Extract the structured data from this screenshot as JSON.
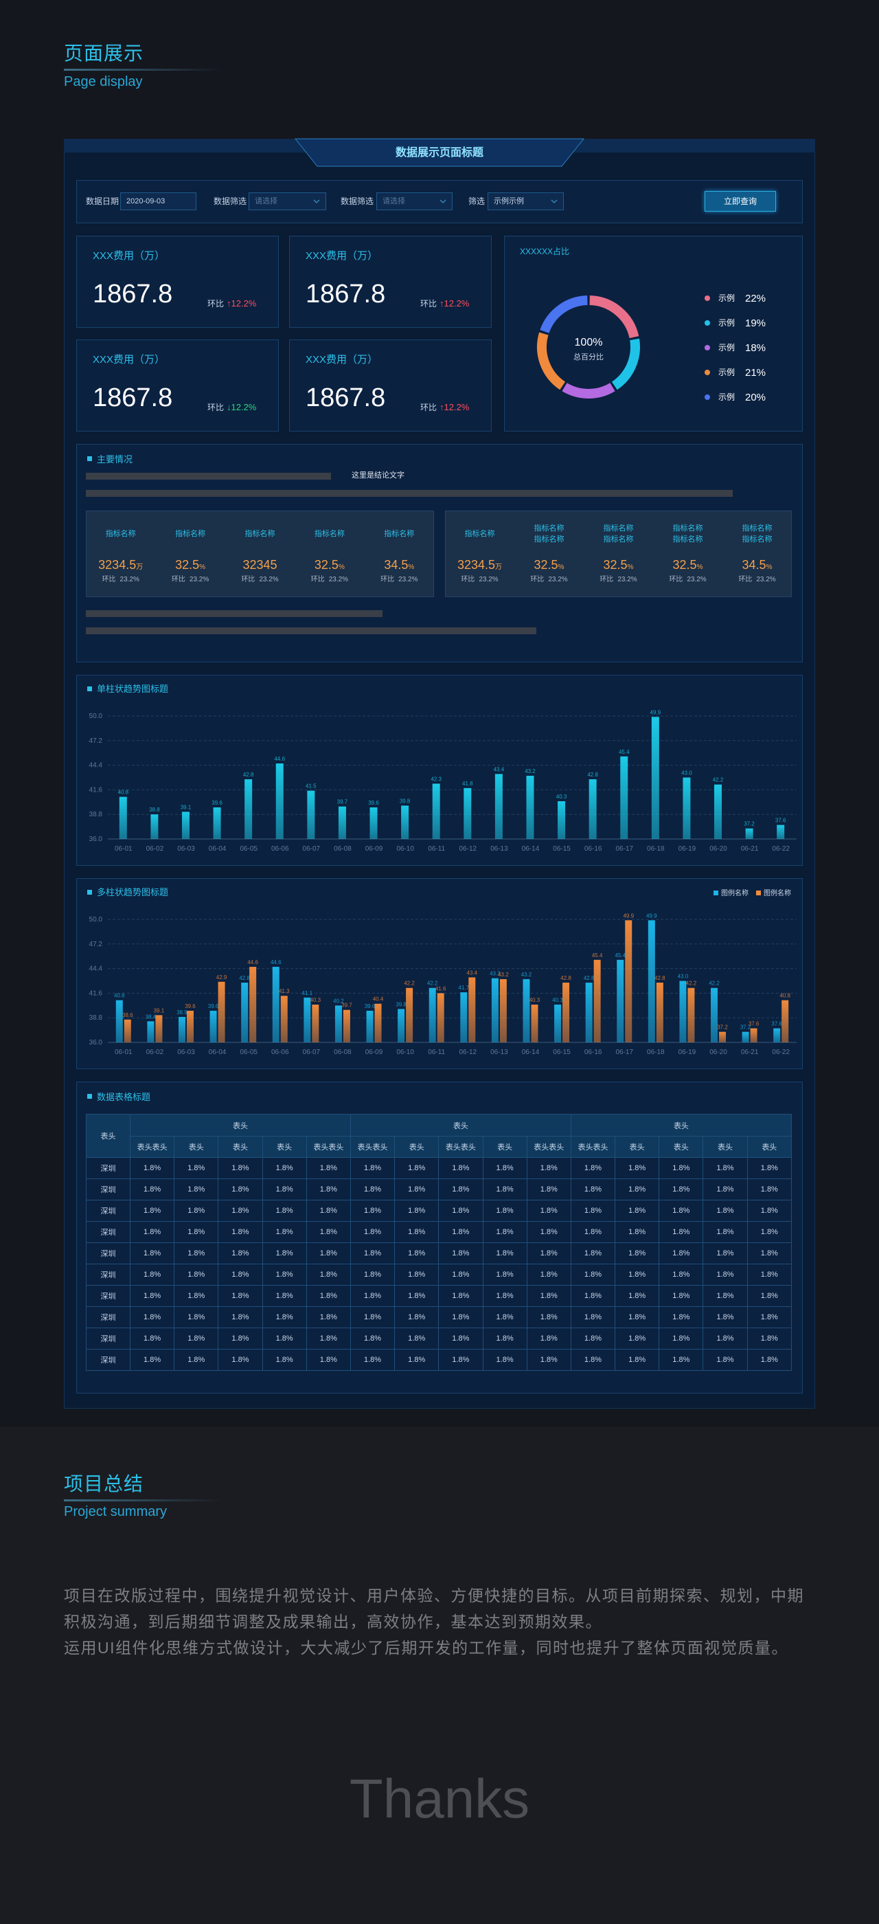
{
  "header": {
    "title": "页面展示",
    "subtitle": "Page display"
  },
  "dashboard": {
    "title": "数据展示页面标题",
    "filters": [
      {
        "label": "数据日期",
        "value": "2020-09-03"
      },
      {
        "label": "数据筛选",
        "value": "请选择"
      },
      {
        "label": "数据筛选",
        "value": "请选择"
      },
      {
        "label": "筛选",
        "value": "示例示例"
      }
    ],
    "button": "立即查询",
    "kpis": [
      {
        "label": "XXX费用（万）",
        "value": "1867.8",
        "change_label": "环比",
        "change": "↑12.2%",
        "change_color": "#ff4d5a"
      },
      {
        "label": "XXX费用（万）",
        "value": "1867.8",
        "change_label": "环比",
        "change": "↑12.2%",
        "change_color": "#ff4d5a"
      },
      {
        "label": "XXX费用（万）",
        "value": "1867.8",
        "change_label": "环比",
        "change": "↓12.2%",
        "change_color": "#2bd67b"
      },
      {
        "label": "XXX费用（万）",
        "value": "1867.8",
        "change_label": "环比",
        "change": "↑12.2%",
        "change_color": "#ff4d5a"
      }
    ],
    "main": {
      "title": "主要情况",
      "conclusion": "这里是结论文字",
      "left_stats": [
        {
          "label": [
            "指标名称"
          ],
          "value": "3234.5",
          "unit": "万",
          "change_label": "环比",
          "change": "23.2%"
        },
        {
          "label": [
            "指标名称"
          ],
          "value": "32.5",
          "unit": "%",
          "change_label": "环比",
          "change": "23.2%"
        },
        {
          "label": [
            "指标名称"
          ],
          "value": "32345",
          "change_label": "环比",
          "change": "23.2%"
        },
        {
          "label": [
            "指标名称"
          ],
          "value": "32.5",
          "unit": "%",
          "change_label": "环比",
          "change": "23.2%"
        },
        {
          "label": [
            "指标名称"
          ],
          "value": "34.5",
          "unit": "%",
          "change_label": "环比",
          "change": "23.2%"
        }
      ],
      "right_stats": [
        {
          "label": [
            "指标名称"
          ],
          "value": "3234.5",
          "unit": "万",
          "change_label": "环比",
          "change": "23.2%"
        },
        {
          "label": [
            "指标名称",
            "指标名称"
          ],
          "value": "32.5",
          "unit": "%",
          "change_label": "环比",
          "change": "23.2%"
        },
        {
          "label": [
            "指标名称",
            "指标名称"
          ],
          "value": "32.5",
          "unit": "%",
          "change_label": "环比",
          "change": "23.2%"
        },
        {
          "label": [
            "指标名称",
            "指标名称"
          ],
          "value": "32.5",
          "unit": "%",
          "change_label": "环比",
          "change": "23.2%"
        },
        {
          "label": [
            "指标名称",
            "指标名称"
          ],
          "value": "34.5",
          "unit": "%",
          "change_label": "环比",
          "change": "23.2%"
        }
      ]
    },
    "table": {
      "title": "数据表格标题",
      "corner": "表头",
      "groups": [
        "表头",
        "表头",
        "表头"
      ],
      "subheaders": [
        "表头表头",
        "表头",
        "表头",
        "表头",
        "表头表头",
        "表头表头",
        "表头",
        "表头表头",
        "表头",
        "表头表头",
        "表头表头",
        "表头",
        "表头",
        "表头",
        "表头"
      ],
      "rows": [
        [
          "深圳",
          "1.8%",
          "1.8%",
          "1.8%",
          "1.8%",
          "1.8%",
          "1.8%",
          "1.8%",
          "1.8%",
          "1.8%",
          "1.8%",
          "1.8%",
          "1.8%",
          "1.8%",
          "1.8%",
          "1.8%"
        ],
        [
          "深圳",
          "1.8%",
          "1.8%",
          "1.8%",
          "1.8%",
          "1.8%",
          "1.8%",
          "1.8%",
          "1.8%",
          "1.8%",
          "1.8%",
          "1.8%",
          "1.8%",
          "1.8%",
          "1.8%",
          "1.8%"
        ],
        [
          "深圳",
          "1.8%",
          "1.8%",
          "1.8%",
          "1.8%",
          "1.8%",
          "1.8%",
          "1.8%",
          "1.8%",
          "1.8%",
          "1.8%",
          "1.8%",
          "1.8%",
          "1.8%",
          "1.8%",
          "1.8%"
        ],
        [
          "深圳",
          "1.8%",
          "1.8%",
          "1.8%",
          "1.8%",
          "1.8%",
          "1.8%",
          "1.8%",
          "1.8%",
          "1.8%",
          "1.8%",
          "1.8%",
          "1.8%",
          "1.8%",
          "1.8%",
          "1.8%"
        ],
        [
          "深圳",
          "1.8%",
          "1.8%",
          "1.8%",
          "1.8%",
          "1.8%",
          "1.8%",
          "1.8%",
          "1.8%",
          "1.8%",
          "1.8%",
          "1.8%",
          "1.8%",
          "1.8%",
          "1.8%",
          "1.8%"
        ],
        [
          "深圳",
          "1.8%",
          "1.8%",
          "1.8%",
          "1.8%",
          "1.8%",
          "1.8%",
          "1.8%",
          "1.8%",
          "1.8%",
          "1.8%",
          "1.8%",
          "1.8%",
          "1.8%",
          "1.8%",
          "1.8%"
        ],
        [
          "深圳",
          "1.8%",
          "1.8%",
          "1.8%",
          "1.8%",
          "1.8%",
          "1.8%",
          "1.8%",
          "1.8%",
          "1.8%",
          "1.8%",
          "1.8%",
          "1.8%",
          "1.8%",
          "1.8%",
          "1.8%"
        ],
        [
          "深圳",
          "1.8%",
          "1.8%",
          "1.8%",
          "1.8%",
          "1.8%",
          "1.8%",
          "1.8%",
          "1.8%",
          "1.8%",
          "1.8%",
          "1.8%",
          "1.8%",
          "1.8%",
          "1.8%",
          "1.8%"
        ],
        [
          "深圳",
          "1.8%",
          "1.8%",
          "1.8%",
          "1.8%",
          "1.8%",
          "1.8%",
          "1.8%",
          "1.8%",
          "1.8%",
          "1.8%",
          "1.8%",
          "1.8%",
          "1.8%",
          "1.8%",
          "1.8%"
        ],
        [
          "深圳",
          "1.8%",
          "1.8%",
          "1.8%",
          "1.8%",
          "1.8%",
          "1.8%",
          "1.8%",
          "1.8%",
          "1.8%",
          "1.8%",
          "1.8%",
          "1.8%",
          "1.8%",
          "1.8%",
          "1.8%"
        ]
      ]
    }
  },
  "chart_data": [
    {
      "type": "donut",
      "title": "XXXXXX占比",
      "center_value": "100%",
      "center_label": "总百分比",
      "categories": [
        "示例",
        "示例",
        "示例",
        "示例",
        "示例"
      ],
      "values": [
        22,
        19,
        18,
        21,
        20
      ],
      "value_labels": [
        "22%",
        "19%",
        "18%",
        "21%",
        "20%"
      ],
      "colors": [
        "#e8708a",
        "#1fc3e8",
        "#b46ae0",
        "#f08a3c",
        "#4a74f0"
      ]
    },
    {
      "type": "bar",
      "title": "单柱状趋势图标题",
      "categories": [
        "06-01",
        "06-02",
        "06-03",
        "06-04",
        "06-05",
        "06-06",
        "06-07",
        "06-08",
        "06-09",
        "06-10",
        "06-11",
        "06-12",
        "06-13",
        "06-14",
        "06-15",
        "06-16",
        "06-17",
        "06-18",
        "06-19",
        "06-20",
        "06-21",
        "06-22"
      ],
      "values": [
        40.8,
        38.8,
        39.1,
        39.6,
        42.8,
        44.6,
        41.5,
        39.7,
        39.6,
        39.8,
        42.3,
        41.8,
        43.4,
        43.2,
        40.3,
        42.8,
        45.4,
        49.9,
        43.0,
        42.2,
        37.2,
        37.6
      ],
      "value_labels": [
        "40.8",
        "38.8",
        "39.1",
        "39.6",
        "42.8",
        "44.6",
        "41.5",
        "39.7",
        "39.6",
        "39.8",
        "42.3",
        "41.8",
        "43.4",
        "43.2",
        "40.3",
        "42.8",
        "45.4",
        "49.9",
        "43.0",
        "42.2",
        "37.2",
        "37.6"
      ],
      "color": "#1ccbe8",
      "ylim": [
        36,
        50
      ],
      "yticks": [
        {
          "value": 36,
          "label": "36.0"
        },
        38.8,
        41.6,
        44.4,
        47.2,
        {
          "value": 50,
          "label": "50.0"
        }
      ],
      "grid": true
    },
    {
      "type": "bar",
      "title": "多柱状趋势图标题",
      "legend": "top-right",
      "categories": [
        "06-01",
        "06-02",
        "06-03",
        "06-04",
        "06-05",
        "06-06",
        "06-07",
        "06-08",
        "06-09",
        "06-10",
        "06-11",
        "06-12",
        "06-13",
        "06-14",
        "06-15",
        "06-16",
        "06-17",
        "06-18",
        "06-19",
        "06-20",
        "06-21",
        "06-22"
      ],
      "series": [
        {
          "name": "图例名称",
          "color": "#1cb5e8",
          "values": [
            40.8,
            38.4,
            38.9,
            39.6,
            42.8,
            44.6,
            41.1,
            40.2,
            39.6,
            39.8,
            42.2,
            41.7,
            43.3,
            43.2,
            40.3,
            42.8,
            45.4,
            49.9,
            43.0,
            42.2,
            37.2,
            37.6
          ],
          "value_labels": [
            "40.8",
            "38.4",
            "38.9",
            "39.6",
            "42.8",
            "44.6",
            "41.1",
            "40.2",
            "39.6",
            "39.8",
            "42.2",
            "41.7",
            "43.3",
            "43.2",
            "40.3",
            "42.8",
            "45.4",
            "49.9",
            "43.0",
            "42.2",
            "37.2",
            "37.6"
          ]
        },
        {
          "name": "图例名称",
          "color": "#f08a3c",
          "values": [
            38.6,
            39.1,
            39.6,
            42.9,
            44.6,
            41.3,
            40.3,
            39.7,
            40.4,
            42.2,
            41.6,
            43.4,
            43.2,
            40.3,
            42.8,
            45.4,
            49.9,
            42.8,
            42.2,
            37.2,
            37.6,
            40.8
          ],
          "value_labels": [
            "38.6",
            "39.1",
            "39.6",
            "42.9",
            "44.6",
            "41.3",
            "40.3",
            "39.7",
            "40.4",
            "42.2",
            "41.6",
            "43.4",
            "43.2",
            "40.3",
            "42.8",
            "45.4",
            "49.9",
            "42.8",
            "42.2",
            "37.2",
            "37.6",
            "40.8"
          ]
        }
      ],
      "ylim": [
        36,
        50
      ],
      "yticks": [
        {
          "value": 36,
          "label": "36.0"
        },
        38.8,
        41.6,
        44.4,
        47.2,
        {
          "value": 50,
          "label": "50.0"
        }
      ],
      "grid": true
    }
  ],
  "summary": {
    "title": "项目总结",
    "subtitle": "Project summary",
    "paragraphs": [
      "项目在改版过程中，围绕提升视觉设计、用户体验、方便快捷的目标。从项目前期探索、规划，中期积极沟通，到后期细节调整及成果输出，高效协作，基本达到预期效果。",
      "运用UI组件化思维方式做设计，大大减少了后期开发的工作量，同时也提升了整体页面视觉质量。"
    ]
  },
  "closing": "Thanks"
}
